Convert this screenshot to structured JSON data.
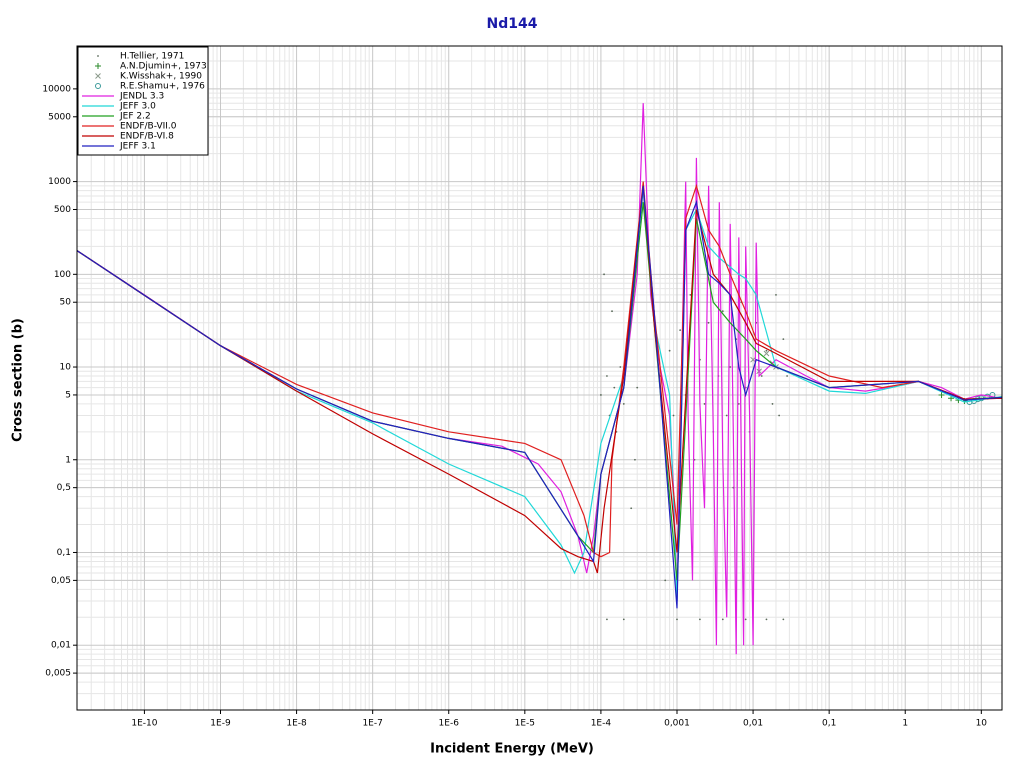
{
  "chart_data": {
    "type": "line",
    "title": "Nd144",
    "x_label": "Incident Energy (MeV)",
    "y_label": "Cross section (b)",
    "xscale": "log",
    "yscale": "log",
    "grid": true,
    "minor_grid": true,
    "legend": "upper left",
    "xlim": [
      1.3e-11,
      18.7
    ],
    "ylim": [
      0.002,
      29000
    ],
    "xticks": [
      {
        "value": 1e-10,
        "label": "1E-10"
      },
      {
        "value": 1e-09,
        "label": "1E-9"
      },
      {
        "value": 1e-08,
        "label": "1E-8"
      },
      {
        "value": 1e-07,
        "label": "1E-7"
      },
      {
        "value": 1e-06,
        "label": "1E-6"
      },
      {
        "value": 1e-05,
        "label": "1E-5"
      },
      {
        "value": 0.0001,
        "label": "1E-4"
      },
      {
        "value": 0.001,
        "label": "0,001"
      },
      {
        "value": 0.01,
        "label": "0,01"
      },
      {
        "value": 0.1,
        "label": "0,1"
      },
      1,
      10
    ],
    "yticks": [
      10000,
      5000,
      1000,
      500,
      100,
      50,
      10,
      5,
      1,
      {
        "value": 0.5,
        "label": "0,5"
      },
      {
        "value": 0.1,
        "label": "0,1"
      },
      {
        "value": 0.05,
        "label": "0,05"
      },
      {
        "value": 0.01,
        "label": "0,01"
      },
      {
        "value": 0.005,
        "label": "0,005"
      }
    ],
    "series": [
      {
        "name": "H.Tellier, 1971",
        "kind": "scatter",
        "marker": "dot",
        "color": "#5a6a5a",
        "x": [
          0.0001,
          0.00011,
          0.00012,
          0.00013,
          0.00014,
          0.00015,
          0.00016,
          0.00018,
          0.0002,
          0.00022,
          0.00025,
          0.00028,
          0.0003,
          0.0005,
          0.0006,
          0.0007,
          0.0008,
          0.0009,
          0.0011,
          0.0013,
          0.0015,
          0.0017,
          0.002,
          0.0023,
          0.0026,
          0.003,
          0.0035,
          0.004,
          0.0045,
          0.005,
          0.0055,
          0.006,
          0.0065,
          0.007,
          0.008,
          0.009,
          0.011,
          0.013,
          0.015,
          0.018,
          0.02,
          0.022,
          0.025,
          0.028,
          0.00012,
          0.0002,
          0.001,
          0.002,
          0.004,
          0.008,
          0.015,
          0.025
        ],
        "values": [
          5,
          100,
          8,
          3,
          40,
          6,
          2,
          10,
          4,
          20,
          0.3,
          1,
          6,
          40,
          8,
          0.05,
          15,
          3,
          25,
          5,
          60,
          1,
          12,
          4,
          30,
          2,
          8,
          40,
          3,
          10,
          0.5,
          20,
          4,
          50,
          6,
          2,
          30,
          8,
          15,
          4,
          60,
          3,
          20,
          8,
          0.019,
          0.019,
          0.019,
          0.019,
          0.019,
          0.019,
          0.019,
          0.019
        ]
      },
      {
        "name": "A.N.Djumin+, 1973",
        "kind": "scatter",
        "marker": "plus",
        "color": "#2a8a2a",
        "x": [
          3,
          4,
          5,
          6
        ],
        "values": [
          5,
          4.6,
          4.4,
          4.3
        ]
      },
      {
        "name": "K.Wisshak+, 1990",
        "kind": "scatter",
        "marker": "cross",
        "color": "#8a9a8a",
        "x": [
          0.01,
          0.012,
          0.015,
          0.018,
          0.02
        ],
        "values": [
          12,
          9,
          14,
          11,
          10
        ]
      },
      {
        "name": "R.E.Shamu+, 1976",
        "kind": "scatter",
        "marker": "circle",
        "color": "#3a9a9a",
        "x": [
          7,
          8,
          9,
          10,
          12,
          14
        ],
        "values": [
          4.2,
          4.3,
          4.5,
          4.6,
          4.8,
          5
        ]
      },
      {
        "name": "JENDL 3.3",
        "kind": "line",
        "color": "#e020e0",
        "x": [
          1.3e-11,
          1e-10,
          1e-09,
          1e-08,
          1e-07,
          1e-06,
          5e-06,
          1.5e-05,
          3e-05,
          5e-05,
          6.5e-05,
          8e-05,
          0.0001,
          0.0002,
          0.0003,
          0.00036,
          0.00045,
          0.0006,
          0.0008,
          0.0009,
          0.001,
          0.0011,
          0.0013,
          0.0014,
          0.0016,
          0.0018,
          0.002,
          0.0023,
          0.0026,
          0.003,
          0.0033,
          0.0036,
          0.004,
          0.0045,
          0.005,
          0.0055,
          0.006,
          0.0065,
          0.007,
          0.0075,
          0.008,
          0.009,
          0.01,
          0.011,
          0.012,
          0.02,
          0.05,
          0.1,
          0.3,
          1,
          1.5,
          3,
          6,
          10,
          18.7
        ],
        "values": [
          180,
          60,
          17,
          5.8,
          2.6,
          1.7,
          1.4,
          0.9,
          0.45,
          0.15,
          0.06,
          0.15,
          0.7,
          6,
          100,
          7000,
          60,
          10,
          3,
          0.5,
          0.03,
          2,
          1000,
          3,
          0.05,
          1800,
          4,
          0.3,
          900,
          2,
          0.01,
          600,
          1,
          0.02,
          350,
          2,
          0.008,
          250,
          1,
          0.01,
          200,
          3,
          0.01,
          220,
          8,
          12,
          8,
          6,
          5.5,
          6.5,
          7,
          6,
          4.5,
          5,
          4.6
        ]
      },
      {
        "name": "JEFF 3.0",
        "kind": "line",
        "color": "#20d8d8",
        "x": [
          1.3e-11,
          1e-09,
          1e-08,
          1e-07,
          1e-06,
          1e-05,
          3e-05,
          4.5e-05,
          6e-05,
          0.0001,
          0.0002,
          0.00036,
          0.0005,
          0.0008,
          0.001,
          0.0013,
          0.0018,
          0.0026,
          0.0036,
          0.005,
          0.0065,
          0.008,
          0.011,
          0.02,
          0.1,
          0.3,
          1.5,
          6,
          18.7
        ],
        "values": [
          180,
          17,
          5.5,
          2.5,
          0.9,
          0.4,
          0.12,
          0.06,
          0.1,
          1.5,
          8,
          800,
          30,
          5,
          0.03,
          300,
          500,
          200,
          150,
          120,
          100,
          90,
          60,
          10,
          5.5,
          5.2,
          7,
          4.2,
          4.8
        ]
      },
      {
        "name": "JEF 2.2",
        "kind": "line",
        "color": "#20a020",
        "x": [
          1.3e-11,
          1e-09,
          1e-08,
          1e-07,
          1e-06,
          1e-05,
          5e-05,
          8e-05,
          0.0001,
          0.0002,
          0.00036,
          0.0005,
          0.001,
          0.0018,
          0.003,
          0.005,
          0.008,
          0.011,
          0.02,
          0.1,
          1.5,
          6,
          18.7
        ],
        "values": [
          180,
          17,
          5.8,
          2.6,
          1.7,
          1.2,
          0.15,
          0.1,
          0.7,
          6,
          600,
          30,
          0.05,
          400,
          50,
          30,
          20,
          15,
          10,
          6,
          7,
          4.5,
          4.7
        ]
      },
      {
        "name": "ENDF/B-VII.0",
        "kind": "line",
        "color": "#e02020",
        "x": [
          1.3e-11,
          1e-09,
          1e-08,
          1e-07,
          1e-06,
          1e-05,
          3e-05,
          6e-05,
          8e-05,
          0.0001,
          0.00013,
          0.00014,
          0.0002,
          0.00036,
          0.0005,
          0.001,
          0.0013,
          0.0018,
          0.0026,
          0.0036,
          0.005,
          0.0065,
          0.008,
          0.011,
          0.02,
          0.1,
          0.5,
          1.5,
          6,
          18.7
        ],
        "values": [
          180,
          17,
          6.5,
          3.2,
          2.0,
          1.5,
          1.0,
          0.25,
          0.1,
          0.09,
          0.1,
          1,
          10,
          1000,
          40,
          0.2,
          400,
          900,
          300,
          200,
          100,
          60,
          40,
          20,
          15,
          8,
          6,
          7,
          4.5,
          4.6
        ]
      },
      {
        "name": "ENDF/B-VI.8",
        "kind": "line",
        "color": "#c00000",
        "x": [
          1.3e-11,
          1e-09,
          1e-08,
          1e-07,
          1e-06,
          1e-05,
          3e-05,
          5e-05,
          8e-05,
          9e-05,
          0.00011,
          0.0002,
          0.00036,
          0.0005,
          0.001,
          0.0018,
          0.003,
          0.005,
          0.008,
          0.011,
          0.02,
          0.1,
          1.5,
          6,
          18.7
        ],
        "values": [
          180,
          17,
          5.5,
          1.9,
          0.7,
          0.25,
          0.11,
          0.09,
          0.08,
          0.06,
          0.3,
          8,
          900,
          30,
          0.1,
          500,
          100,
          60,
          30,
          18,
          14,
          7,
          7,
          4.5,
          4.6
        ]
      },
      {
        "name": "JEFF 3.1",
        "kind": "line",
        "color": "#2020c0",
        "x": [
          1.3e-11,
          1e-09,
          1e-08,
          1e-07,
          1e-06,
          1e-05,
          5e-05,
          8e-05,
          0.0001,
          0.0002,
          0.00036,
          0.0005,
          0.001,
          0.0013,
          0.0018,
          0.0026,
          0.0036,
          0.005,
          0.0065,
          0.008,
          0.011,
          0.02,
          0.1,
          1.5,
          6,
          18.7
        ],
        "values": [
          180,
          17,
          5.8,
          2.6,
          1.7,
          1.2,
          0.15,
          0.08,
          0.7,
          6,
          900,
          40,
          0.025,
          300,
          600,
          100,
          80,
          60,
          10,
          5,
          12,
          10,
          6,
          7,
          4.4,
          4.7
        ]
      }
    ]
  }
}
